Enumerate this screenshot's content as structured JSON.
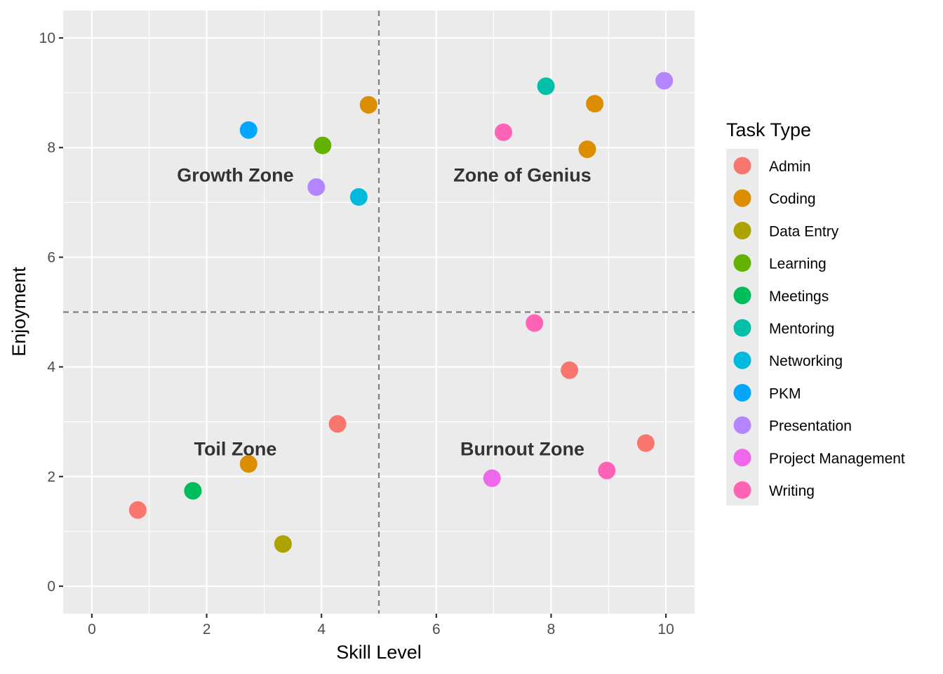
{
  "chart_data": {
    "type": "scatter",
    "xlabel": "Skill Level",
    "ylabel": "Enjoyment",
    "xlim": [
      -0.5,
      10.5
    ],
    "ylim": [
      -0.5,
      10.5
    ],
    "x_ticks": [
      0,
      2,
      4,
      6,
      8,
      10
    ],
    "y_ticks": [
      0,
      2,
      4,
      6,
      8,
      10
    ],
    "grid": true,
    "reference_lines": [
      {
        "axis": "x",
        "value": 5,
        "style": "dashed"
      },
      {
        "axis": "y",
        "value": 5,
        "style": "dashed"
      }
    ],
    "annotations": [
      {
        "text": "Growth Zone",
        "x": 2.5,
        "y": 7.5
      },
      {
        "text": "Zone of Genius",
        "x": 7.5,
        "y": 7.5
      },
      {
        "text": "Toil Zone",
        "x": 2.5,
        "y": 2.5
      },
      {
        "text": "Burnout Zone",
        "x": 7.5,
        "y": 2.5
      }
    ],
    "legend": {
      "title": "Task Type",
      "placement": "right",
      "entries": [
        {
          "name": "Admin",
          "color": "#F8766D"
        },
        {
          "name": "Coding",
          "color": "#DB8E00"
        },
        {
          "name": "Data Entry",
          "color": "#AEA200"
        },
        {
          "name": "Learning",
          "color": "#64B200"
        },
        {
          "name": "Meetings",
          "color": "#00BD5C"
        },
        {
          "name": "Mentoring",
          "color": "#00C1A7"
        },
        {
          "name": "Networking",
          "color": "#00BADE"
        },
        {
          "name": "PKM",
          "color": "#00A6FF"
        },
        {
          "name": "Presentation",
          "color": "#B385FF"
        },
        {
          "name": "Project Management",
          "color": "#EF67EB"
        },
        {
          "name": "Writing",
          "color": "#FF63B6"
        }
      ]
    },
    "points": [
      {
        "x": 2.73,
        "y": 8.32,
        "type": "PKM"
      },
      {
        "x": 4.82,
        "y": 8.78,
        "type": "Coding"
      },
      {
        "x": 4.02,
        "y": 8.04,
        "type": "Learning"
      },
      {
        "x": 3.91,
        "y": 7.28,
        "type": "Presentation"
      },
      {
        "x": 4.65,
        "y": 7.1,
        "type": "Networking"
      },
      {
        "x": 7.91,
        "y": 9.12,
        "type": "Mentoring"
      },
      {
        "x": 8.76,
        "y": 8.8,
        "type": "Coding"
      },
      {
        "x": 9.97,
        "y": 9.22,
        "type": "Presentation"
      },
      {
        "x": 7.17,
        "y": 8.28,
        "type": "Writing"
      },
      {
        "x": 8.63,
        "y": 7.97,
        "type": "Coding"
      },
      {
        "x": 7.71,
        "y": 4.8,
        "type": "Writing"
      },
      {
        "x": 8.32,
        "y": 3.94,
        "type": "Admin"
      },
      {
        "x": 9.65,
        "y": 2.61,
        "type": "Admin"
      },
      {
        "x": 8.97,
        "y": 2.11,
        "type": "Writing"
      },
      {
        "x": 6.97,
        "y": 1.97,
        "type": "Project Management"
      },
      {
        "x": 4.28,
        "y": 2.96,
        "type": "Admin"
      },
      {
        "x": 2.73,
        "y": 2.23,
        "type": "Coding"
      },
      {
        "x": 1.76,
        "y": 1.74,
        "type": "Meetings"
      },
      {
        "x": 0.8,
        "y": 1.39,
        "type": "Admin"
      },
      {
        "x": 3.33,
        "y": 0.77,
        "type": "Data Entry"
      }
    ]
  }
}
